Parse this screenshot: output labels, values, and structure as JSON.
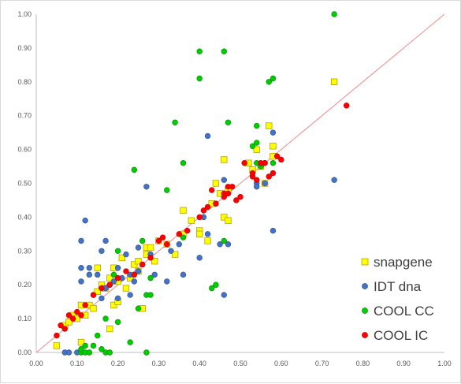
{
  "chart_data": {
    "type": "scatter",
    "title": "",
    "xlabel": "",
    "ylabel": "",
    "xlim": [
      0,
      1
    ],
    "ylim": [
      0,
      1
    ],
    "x_ticks": [
      "0.00",
      "0.10",
      "0.20",
      "0.30",
      "0.40",
      "0.50",
      "0.60",
      "0.70",
      "0.80",
      "0.90",
      "1.00"
    ],
    "y_ticks": [
      "0.00",
      "0.10",
      "0.20",
      "0.30",
      "0.40",
      "0.50",
      "0.60",
      "0.70",
      "0.80",
      "0.90",
      "1.00"
    ],
    "grid": false,
    "legend_position": "bottom-right",
    "reference_line": {
      "from": [
        0,
        0
      ],
      "to": [
        1,
        1
      ],
      "color": "#ee8a8a"
    },
    "series": [
      {
        "name": "snapgene",
        "marker": "square",
        "color": "#ffff00",
        "edge": "#b8a000",
        "points": [
          [
            0.05,
            0.02
          ],
          [
            0.07,
            0.08
          ],
          [
            0.08,
            0.09
          ],
          [
            0.09,
            0.11
          ],
          [
            0.1,
            0.1
          ],
          [
            0.11,
            0.03
          ],
          [
            0.11,
            0.14
          ],
          [
            0.12,
            0.11
          ],
          [
            0.13,
            0.14
          ],
          [
            0.14,
            0.13
          ],
          [
            0.15,
            0.18
          ],
          [
            0.15,
            0.25
          ],
          [
            0.16,
            0.2
          ],
          [
            0.17,
            0.19
          ],
          [
            0.18,
            0.07
          ],
          [
            0.18,
            0.22
          ],
          [
            0.19,
            0.14
          ],
          [
            0.19,
            0.25
          ],
          [
            0.2,
            0.15
          ],
          [
            0.2,
            0.21
          ],
          [
            0.21,
            0.28
          ],
          [
            0.22,
            0.19
          ],
          [
            0.23,
            0.22
          ],
          [
            0.24,
            0.26
          ],
          [
            0.25,
            0.24
          ],
          [
            0.25,
            0.27
          ],
          [
            0.26,
            0.13
          ],
          [
            0.27,
            0.29
          ],
          [
            0.27,
            0.31
          ],
          [
            0.28,
            0.31
          ],
          [
            0.29,
            0.27
          ],
          [
            0.3,
            0.33
          ],
          [
            0.32,
            0.32
          ],
          [
            0.34,
            0.29
          ],
          [
            0.36,
            0.42
          ],
          [
            0.36,
            0.35
          ],
          [
            0.38,
            0.39
          ],
          [
            0.4,
            0.36
          ],
          [
            0.4,
            0.35
          ],
          [
            0.42,
            0.33
          ],
          [
            0.43,
            0.44
          ],
          [
            0.44,
            0.5
          ],
          [
            0.45,
            0.47
          ],
          [
            0.46,
            0.4
          ],
          [
            0.46,
            0.57
          ],
          [
            0.47,
            0.48
          ],
          [
            0.47,
            0.39
          ],
          [
            0.52,
            0.56
          ],
          [
            0.53,
            0.54
          ],
          [
            0.54,
            0.6
          ],
          [
            0.55,
            0.55
          ],
          [
            0.56,
            0.5
          ],
          [
            0.57,
            0.67
          ],
          [
            0.58,
            0.58
          ],
          [
            0.58,
            0.61
          ],
          [
            0.73,
            0.8
          ]
        ]
      },
      {
        "name": "IDT dna",
        "marker": "circle",
        "color": "#4472c4",
        "edge": "#2f528f",
        "points": [
          [
            0.07,
            0.0
          ],
          [
            0.08,
            0.0
          ],
          [
            0.1,
            0.0
          ],
          [
            0.11,
            0.21
          ],
          [
            0.11,
            0.25
          ],
          [
            0.11,
            0.33
          ],
          [
            0.12,
            0.39
          ],
          [
            0.13,
            0.23
          ],
          [
            0.13,
            0.25
          ],
          [
            0.14,
            0.17
          ],
          [
            0.15,
            0.23
          ],
          [
            0.16,
            0.3
          ],
          [
            0.16,
            0.16
          ],
          [
            0.17,
            0.19
          ],
          [
            0.17,
            0.33
          ],
          [
            0.18,
            0.2
          ],
          [
            0.19,
            0.21
          ],
          [
            0.2,
            0.16
          ],
          [
            0.2,
            0.25
          ],
          [
            0.21,
            0.22
          ],
          [
            0.22,
            0.29
          ],
          [
            0.23,
            0.17
          ],
          [
            0.23,
            0.23
          ],
          [
            0.24,
            0.21
          ],
          [
            0.25,
            0.31
          ],
          [
            0.25,
            0.24
          ],
          [
            0.26,
            0.26
          ],
          [
            0.27,
            0.49
          ],
          [
            0.28,
            0.29
          ],
          [
            0.29,
            0.23
          ],
          [
            0.32,
            0.21
          ],
          [
            0.33,
            0.3
          ],
          [
            0.35,
            0.32
          ],
          [
            0.36,
            0.23
          ],
          [
            0.4,
            0.28
          ],
          [
            0.41,
            0.4
          ],
          [
            0.42,
            0.64
          ],
          [
            0.42,
            0.35
          ],
          [
            0.44,
            0.44
          ],
          [
            0.45,
            0.32
          ],
          [
            0.46,
            0.17
          ],
          [
            0.46,
            0.51
          ],
          [
            0.47,
            0.32
          ],
          [
            0.54,
            0.5
          ],
          [
            0.54,
            0.49
          ],
          [
            0.56,
            0.5
          ],
          [
            0.56,
            0.56
          ],
          [
            0.58,
            0.36
          ],
          [
            0.73,
            0.51
          ],
          [
            0.58,
            0.65
          ]
        ]
      },
      {
        "name": "COOL CC",
        "marker": "circle",
        "color": "#00cc00",
        "edge": "#008a00",
        "points": [
          [
            0.11,
            0.0
          ],
          [
            0.11,
            0.01
          ],
          [
            0.12,
            0.0
          ],
          [
            0.12,
            0.02
          ],
          [
            0.13,
            0.0
          ],
          [
            0.14,
            0.02
          ],
          [
            0.15,
            0.05
          ],
          [
            0.16,
            0.01
          ],
          [
            0.17,
            0.0
          ],
          [
            0.17,
            0.1
          ],
          [
            0.18,
            0.0
          ],
          [
            0.19,
            0.23
          ],
          [
            0.2,
            0.3
          ],
          [
            0.2,
            0.09
          ],
          [
            0.23,
            0.03
          ],
          [
            0.24,
            0.54
          ],
          [
            0.25,
            0.13
          ],
          [
            0.26,
            0.33
          ],
          [
            0.27,
            0.0
          ],
          [
            0.27,
            0.17
          ],
          [
            0.28,
            0.17
          ],
          [
            0.28,
            0.22
          ],
          [
            0.32,
            0.48
          ],
          [
            0.34,
            0.68
          ],
          [
            0.36,
            0.56
          ],
          [
            0.36,
            0.34
          ],
          [
            0.4,
            0.89
          ],
          [
            0.4,
            0.81
          ],
          [
            0.43,
            0.19
          ],
          [
            0.44,
            0.2
          ],
          [
            0.46,
            0.89
          ],
          [
            0.46,
            0.33
          ],
          [
            0.47,
            0.68
          ],
          [
            0.53,
            0.61
          ],
          [
            0.54,
            0.62
          ],
          [
            0.54,
            0.67
          ],
          [
            0.54,
            0.56
          ],
          [
            0.55,
            0.55
          ],
          [
            0.57,
            0.8
          ],
          [
            0.58,
            0.81
          ],
          [
            0.73,
            1.0
          ],
          [
            0.58,
            0.56
          ]
        ]
      },
      {
        "name": "COOL IC",
        "marker": "circle",
        "color": "#ff0000",
        "edge": "#c00000",
        "points": [
          [
            0.05,
            0.05
          ],
          [
            0.06,
            0.08
          ],
          [
            0.07,
            0.07
          ],
          [
            0.08,
            0.11
          ],
          [
            0.09,
            0.1
          ],
          [
            0.1,
            0.12
          ],
          [
            0.11,
            0.11
          ],
          [
            0.12,
            0.14
          ],
          [
            0.14,
            0.17
          ],
          [
            0.16,
            0.19
          ],
          [
            0.18,
            0.2
          ],
          [
            0.2,
            0.22
          ],
          [
            0.22,
            0.24
          ],
          [
            0.24,
            0.23
          ],
          [
            0.26,
            0.26
          ],
          [
            0.28,
            0.28
          ],
          [
            0.3,
            0.33
          ],
          [
            0.31,
            0.34
          ],
          [
            0.32,
            0.32
          ],
          [
            0.35,
            0.35
          ],
          [
            0.37,
            0.36
          ],
          [
            0.4,
            0.4
          ],
          [
            0.41,
            0.42
          ],
          [
            0.42,
            0.43
          ],
          [
            0.43,
            0.48
          ],
          [
            0.44,
            0.44
          ],
          [
            0.46,
            0.46
          ],
          [
            0.46,
            0.47
          ],
          [
            0.47,
            0.49
          ],
          [
            0.47,
            0.47
          ],
          [
            0.48,
            0.49
          ],
          [
            0.49,
            0.45
          ],
          [
            0.5,
            0.46
          ],
          [
            0.51,
            0.56
          ],
          [
            0.53,
            0.52
          ],
          [
            0.53,
            0.53
          ],
          [
            0.54,
            0.51
          ],
          [
            0.55,
            0.56
          ],
          [
            0.56,
            0.56
          ],
          [
            0.57,
            0.52
          ],
          [
            0.58,
            0.53
          ],
          [
            0.59,
            0.58
          ],
          [
            0.6,
            0.57
          ],
          [
            0.76,
            0.73
          ]
        ]
      }
    ]
  }
}
